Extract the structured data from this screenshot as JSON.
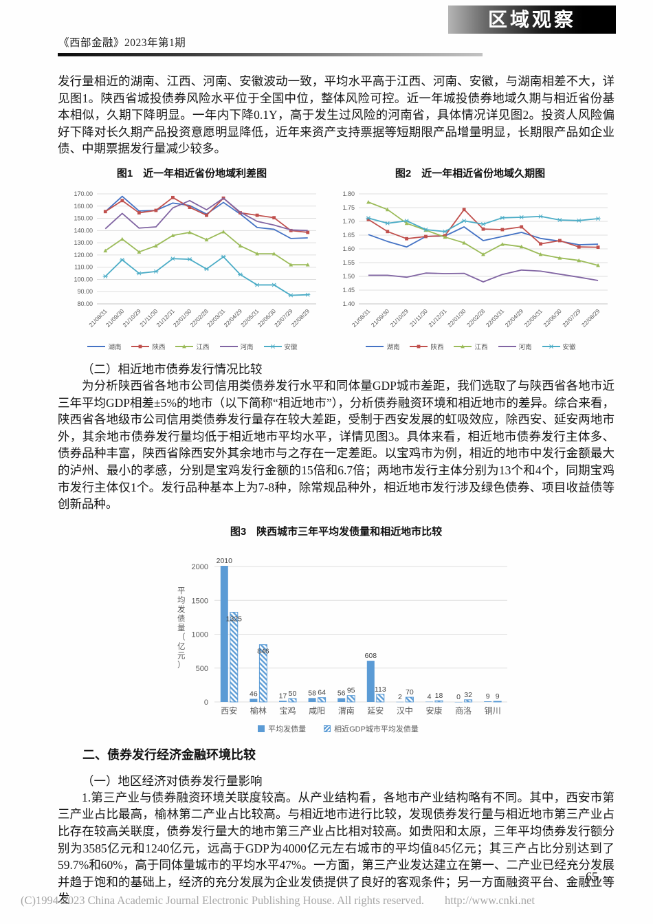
{
  "header": {
    "journal": "《西部金融》2023年第1期",
    "column": "区域观察"
  },
  "content": {
    "p1": "发行量相近的湖南、江西、河南、安徽波动一致，平均水平高于江西、河南、安徽，与湖南相差不大，详见图1。陕西省城投债券风险水平位于全国中位，整体风险可控。近一年城投债券地域久期与相近省份基本相似，久期下降明显。一年内下降0.1Y，高于发生过风险的河南省，具体情况详见图2。投资人风险偏好下降对长久期产品投资意愿明显降低，近年来资产支持票据等短期限产品增量明显，长期限产品如企业债、中期票据发行量减少较多。",
    "h2_1": "（二）相近地市债券发行情况比较",
    "p2": "为分析陕西省各地市公司信用类债券发行水平和同体量GDP城市差距，我们选取了与陕西省各地市近三年平均GDP相差±5%的地市（以下简称“相近地市”），分析债券融资环境和相近地市的差异。综合来看，陕西省各地级市公司信用类债券发行量存在较大差距，受制于西安发展的虹吸效应，除西安、延安两地市外，其余地市债券发行量均低于相近地市平均水平，详情见图3。具体来看，相近地市债券发行主体多、债券品种丰富，陕西省除西安外其余地市与之存在一定差距。以宝鸡市为例，相近的地市中发行金额最大的泸州、最小的孝感，分别是宝鸡发行金额的15倍和6.7倍；两地市发行主体分别为13个和4个，同期宝鸡市发行主体仅1个。发行品种基本上为7-8种，除常规品种外，相近地市发行涉及绿色债券、项目收益债等创新品种。",
    "h1_2": "二、债券发行经济金融环境比较",
    "h2_2": "（一）地区经济对债券发行量影响",
    "p3": "1.第三产业与债券融资环境关联度较高。从产业结构看，各地市产业结构略有不同。其中，西安市第三产业占比最高，榆林第二产业占比较高。与相近地市进行比较，发现债券发行量与相近地市第三产业占比存在较高关联度，债券发行量大的地市第三产业占比相对较高。如贵阳和太原，三年平均债券发行额分别为3585亿元和1240亿元，远高于GDP为4000亿元左右城市的平均值845亿元；其三产占比分别达到了59.7%和60%，高于同体量城市的平均水平47%。一方面，第三产业发达建立在第一、二产业已经充分发展并趋于饱和的基础上，经济的充分发展为企业发债提供了良好的客观条件；另一方面融资平台、金融业等发"
  },
  "chart_data": [
    {
      "id": "fig1",
      "type": "line",
      "title": "图1　近一年相近省份地域利差图",
      "xlabel": "",
      "ylabel": "",
      "ylim": [
        80,
        170
      ],
      "ystep": 10,
      "ydec": 2,
      "grid": true,
      "legend": "bottom",
      "x": [
        "21/08/31",
        "21/09/30",
        "21/10/29",
        "21/11/30",
        "21/12/31",
        "22/01/30",
        "22/02/28",
        "22/03/31",
        "22/04/29",
        "22/05/31",
        "22/06/30",
        "22/07/29",
        "22/08/29"
      ],
      "series": [
        {
          "name": "湖南",
          "color": "#4472C4",
          "marker": "none",
          "values": [
            155.5,
            168,
            156,
            156.5,
            162.5,
            160.5,
            153.5,
            163,
            153.5,
            142.5,
            141,
            133.5,
            134
          ]
        },
        {
          "name": "陕西",
          "color": "#C0504D",
          "marker": "square",
          "values": [
            155.5,
            164.5,
            154.5,
            156.5,
            167,
            159,
            152.5,
            166.5,
            154.5,
            152.5,
            150.5,
            140,
            138.5
          ]
        },
        {
          "name": "江西",
          "color": "#9BBB59",
          "marker": "triangle",
          "values": [
            123.5,
            133,
            122.5,
            127.5,
            136,
            138.5,
            132.5,
            139,
            127.5,
            121,
            121,
            112,
            112
          ]
        },
        {
          "name": "河南",
          "color": "#8064A2",
          "marker": "none",
          "values": [
            141.5,
            154,
            142,
            143,
            158.5,
            164.5,
            157,
            166.5,
            155,
            147.5,
            144.5,
            140.5,
            140
          ]
        },
        {
          "name": "安徽",
          "color": "#4BACC6",
          "marker": "star",
          "values": [
            102.5,
            116,
            105,
            106.5,
            117,
            116.5,
            108.5,
            118.5,
            104,
            95.5,
            95.5,
            87,
            87.5
          ]
        }
      ]
    },
    {
      "id": "fig2",
      "type": "line",
      "title": "图2　近一年相近省份地域久期图",
      "xlabel": "",
      "ylabel": "",
      "ylim": [
        1.4,
        1.8
      ],
      "ystep": 0.05,
      "ydec": 2,
      "grid": true,
      "legend": "bottom",
      "x": [
        "21/08/31",
        "21/09/30",
        "21/10/29",
        "21/11/30",
        "21/12/31",
        "22/01/30",
        "22/02/28",
        "22/03/31",
        "22/04/29",
        "22/05/31",
        "22/06/30",
        "22/07/29",
        "22/08/29"
      ],
      "series": [
        {
          "name": "湖南",
          "color": "#4472C4",
          "marker": "none",
          "values": [
            1.652,
            1.627,
            1.607,
            1.645,
            1.647,
            1.68,
            1.63,
            1.645,
            1.66,
            1.638,
            1.628,
            1.615,
            1.617
          ]
        },
        {
          "name": "陕西",
          "color": "#C0504D",
          "marker": "square",
          "values": [
            1.707,
            1.663,
            1.637,
            1.645,
            1.648,
            1.743,
            1.672,
            1.67,
            1.68,
            1.618,
            1.63,
            1.607,
            1.606
          ]
        },
        {
          "name": "江西",
          "color": "#9BBB59",
          "marker": "triangle",
          "values": [
            1.77,
            1.743,
            1.693,
            1.668,
            1.643,
            1.622,
            1.58,
            1.617,
            1.608,
            1.58,
            1.567,
            1.558,
            1.54
          ]
        },
        {
          "name": "河南",
          "color": "#8064A2",
          "marker": "none",
          "values": [
            1.504,
            1.504,
            1.497,
            1.512,
            1.51,
            1.511,
            1.48,
            1.507,
            1.523,
            1.519,
            1.508,
            1.497,
            1.485
          ]
        },
        {
          "name": "安徽",
          "color": "#4BACC6",
          "marker": "star",
          "values": [
            1.712,
            1.693,
            1.702,
            1.67,
            1.663,
            1.702,
            1.69,
            1.713,
            1.715,
            1.718,
            1.705,
            1.703,
            1.71
          ]
        }
      ]
    },
    {
      "id": "fig3",
      "type": "bar",
      "title": "图3　陕西城市三年平均发债量和相近地市比较",
      "xlabel": "",
      "ylabel": "平均发债量（亿元）",
      "ylim": [
        0,
        2000
      ],
      "ystep": 500,
      "ydec": 0,
      "grid": true,
      "legend": "bottom",
      "bar_color": "#5B9BD5",
      "categories": [
        "西安",
        "榆林",
        "宝鸡",
        "咸阳",
        "渭南",
        "延安",
        "汉中",
        "安康",
        "商洛",
        "铜川"
      ],
      "series": [
        {
          "name": "平均发债量",
          "style": "solid",
          "color": "#5B9BD5",
          "values": [
            2010,
            46,
            17,
            58,
            56,
            608,
            2,
            4,
            0,
            9
          ]
        },
        {
          "name": "相近GDP城市平均发债量",
          "style": "hatch",
          "color": "#5B9BD5",
          "values": [
            1325,
            846,
            50,
            64,
            95,
            113,
            70,
            18,
            32,
            9
          ]
        }
      ]
    }
  ],
  "footer": {
    "page_number": "65",
    "copyright": "(C)1994-2023 China Academic Journal Electronic Publishing House. All rights reserved.",
    "url": "http://www.cnki.net"
  }
}
